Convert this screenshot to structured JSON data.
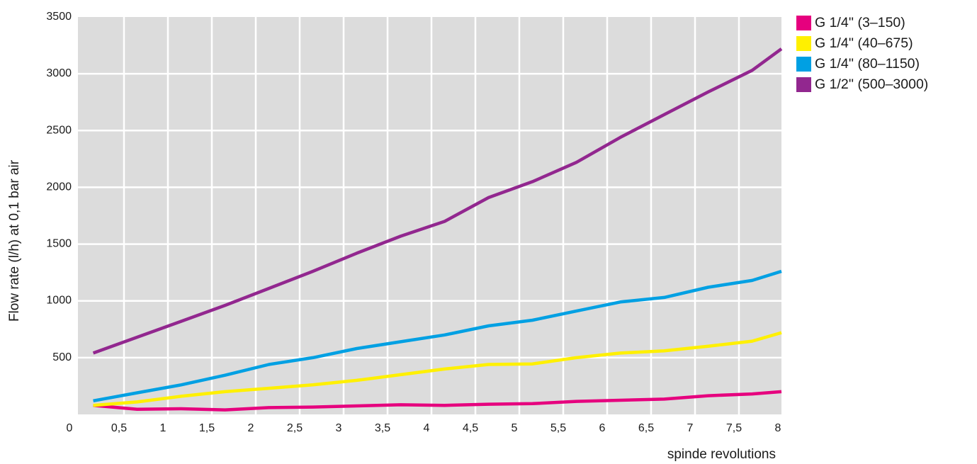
{
  "chart_data": {
    "type": "line",
    "title": "",
    "xlabel": "spinde revolutions",
    "ylabel": "Flow rate (l/h) at 0,1 bar air",
    "xlim": [
      0,
      8
    ],
    "ylim": [
      0,
      3500
    ],
    "grid": true,
    "legend_position": "top-right",
    "plot_background": "#dcdcdc",
    "x_ticks": [
      "0",
      "0,5",
      "1",
      "1,5",
      "2",
      "2,5",
      "3",
      "3,5",
      "4",
      "4,5",
      "5",
      "5,5",
      "6",
      "6,5",
      "7",
      "7,5",
      "8"
    ],
    "y_ticks": [
      "500",
      "1000",
      "1500",
      "2000",
      "2500",
      "3000",
      "3500"
    ],
    "x": [
      0.15,
      0.65,
      1.15,
      1.65,
      2.15,
      2.65,
      3.15,
      3.65,
      4.15,
      4.65,
      5.15,
      5.65,
      6.15,
      6.65,
      7.15,
      7.65,
      8.15
    ],
    "series": [
      {
        "name": "G 1/4'' (3–150)",
        "color": "#e6007e",
        "values": [
          80,
          45,
          50,
          40,
          60,
          65,
          75,
          85,
          80,
          90,
          95,
          115,
          125,
          135,
          165,
          180,
          200
        ]
      },
      {
        "name": "G 1/4'' (40–675)",
        "color": "#fff000",
        "values": [
          80,
          110,
          160,
          200,
          230,
          260,
          300,
          350,
          400,
          440,
          445,
          500,
          540,
          560,
          600,
          645,
          720
        ]
      },
      {
        "name": "G 1/4'' (80–1150)",
        "color": "#00a0e3",
        "values": [
          120,
          190,
          260,
          345,
          440,
          500,
          580,
          640,
          700,
          780,
          830,
          910,
          990,
          1030,
          1120,
          1180,
          1260
        ]
      },
      {
        "name": "G 1/2'' (500–3000)",
        "color": "#92278f",
        "values": [
          540,
          680,
          820,
          960,
          1110,
          1260,
          1420,
          1570,
          1700,
          1910,
          2050,
          2220,
          2440,
          2640,
          2840,
          3030,
          3220
        ]
      }
    ]
  }
}
